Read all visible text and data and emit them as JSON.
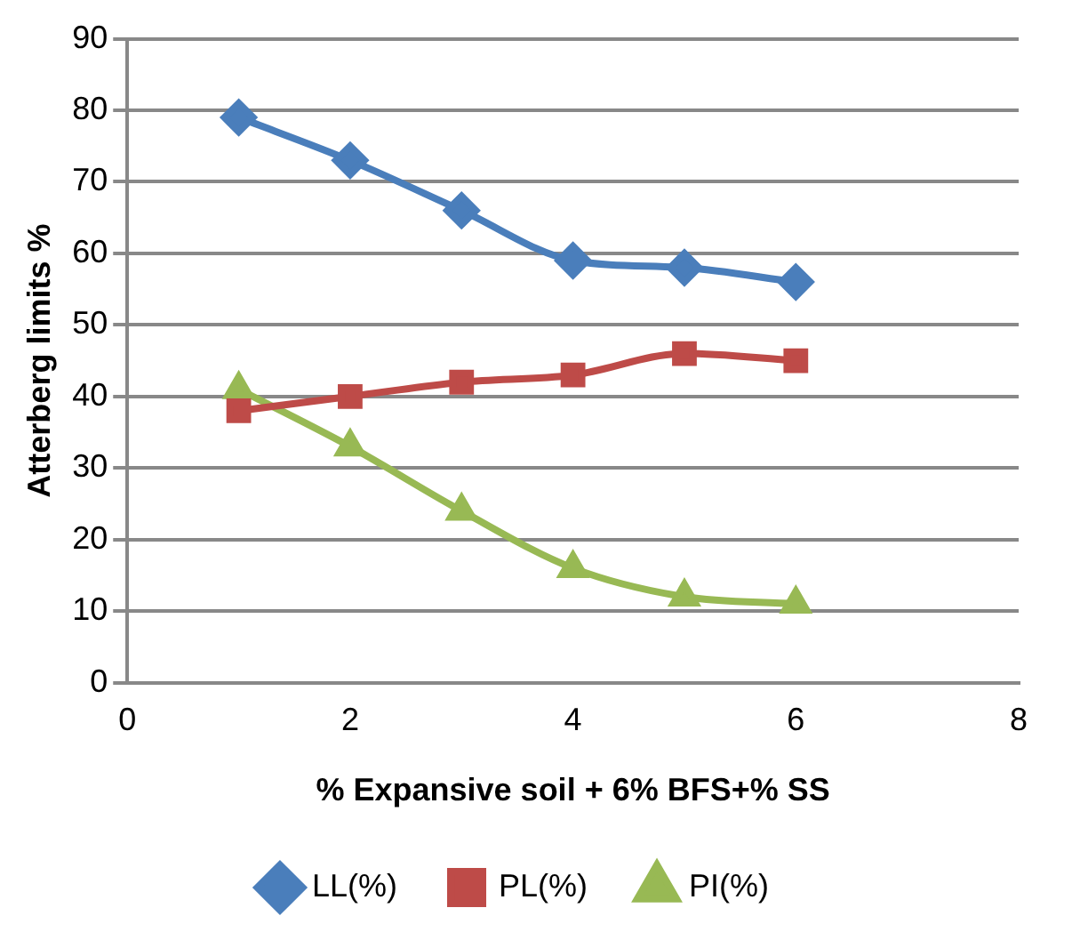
{
  "chart_data": {
    "type": "line",
    "xlabel": "% Expansive soil + 6% BFS+% SS",
    "ylabel": "Atterberg limits %",
    "x": [
      1,
      2,
      3,
      4,
      5,
      6
    ],
    "series": [
      {
        "name": "LL(%)",
        "color": "#4a7ebb",
        "values": [
          79,
          73,
          66,
          59,
          58,
          56
        ],
        "marker": "diamond"
      },
      {
        "name": "PL(%)",
        "color": "#be4b48",
        "values": [
          38,
          40,
          42,
          43,
          46,
          45
        ],
        "marker": "square"
      },
      {
        "name": "PI(%)",
        "color": "#98b954",
        "values": [
          41,
          33,
          24,
          16,
          12,
          11
        ],
        "marker": "triangle"
      }
    ],
    "xlim": [
      0,
      8
    ],
    "xticks": [
      0,
      2,
      4,
      6,
      8
    ],
    "ylim": [
      0,
      90
    ],
    "yticks": [
      0,
      10,
      20,
      30,
      40,
      50,
      60,
      70,
      80,
      90
    ],
    "grid": "y",
    "legend": "bottom"
  }
}
